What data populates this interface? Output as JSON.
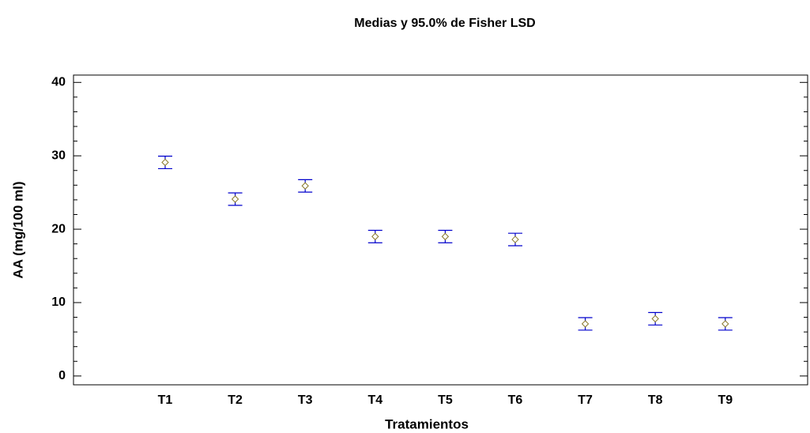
{
  "chart_data": {
    "type": "errorbar",
    "title": "Medias y 95.0% de Fisher LSD",
    "xlabel": "Tratamientos",
    "ylabel": "AA (mg/100 ml)",
    "categories": [
      "T1",
      "T2",
      "T3",
      "T4",
      "T5",
      "T6",
      "T7",
      "T8",
      "T9"
    ],
    "values": [
      29.1,
      24.1,
      25.9,
      19.0,
      19.0,
      18.6,
      7.1,
      7.8,
      7.1
    ],
    "errors": [
      0.85,
      0.85,
      0.85,
      0.85,
      0.85,
      0.85,
      0.85,
      0.85,
      0.85
    ],
    "color": "#0000cc",
    "marker_color": "#8a7a2a",
    "ylim": [
      -1.2,
      41
    ],
    "yticks": [
      0,
      10,
      20,
      30,
      40
    ],
    "yminorticks": [
      2,
      4,
      6,
      8,
      12,
      14,
      16,
      18,
      22,
      24,
      26,
      28,
      32,
      34,
      36,
      38
    ],
    "grid": false
  }
}
